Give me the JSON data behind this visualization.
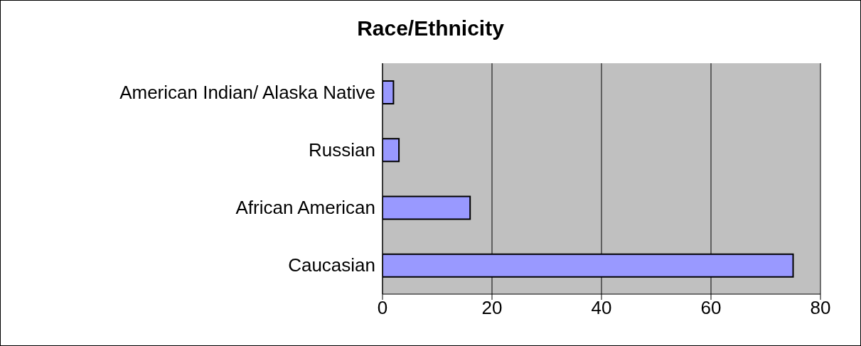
{
  "chart_data": {
    "type": "bar",
    "orientation": "horizontal",
    "title": "Race/Ethnicity",
    "categories": [
      "American Indian/ Alaska Native",
      "Russian",
      "African American",
      "Caucasian"
    ],
    "values": [
      2,
      3,
      16,
      75
    ],
    "color": "#9999ff",
    "xlim": [
      0,
      80
    ],
    "xticks": [
      0,
      20,
      40,
      60,
      80
    ],
    "grid": "x"
  }
}
